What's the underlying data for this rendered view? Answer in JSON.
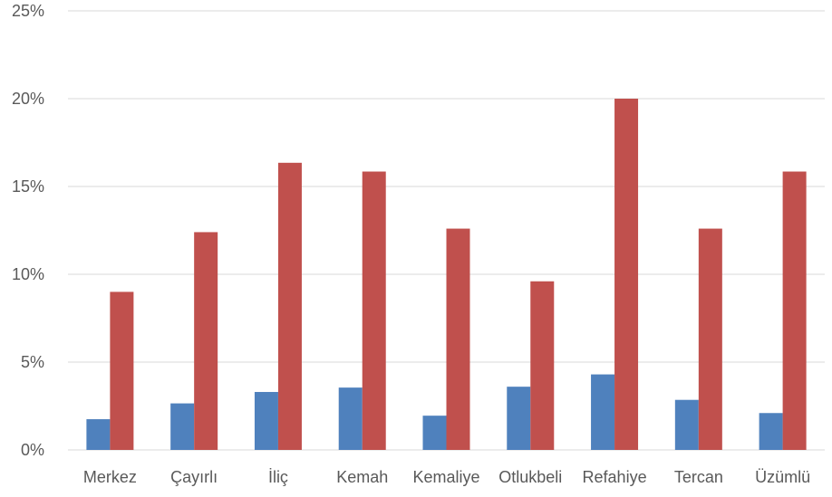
{
  "chart_data": {
    "type": "bar",
    "title": "",
    "xlabel": "",
    "ylabel": "",
    "ylim": [
      0,
      25
    ],
    "yticks": [
      "0%",
      "5%",
      "10%",
      "15%",
      "20%",
      "25%"
    ],
    "ytick_values": [
      0,
      5,
      10,
      15,
      20,
      25
    ],
    "grid": true,
    "legend": "none",
    "categories": [
      "Merkez",
      "Çayırlı",
      "İliç",
      "Kemah",
      "Kemaliye",
      "Otlukbeli",
      "Refahiye",
      "Tercan",
      "Üzümlü"
    ],
    "series": [
      {
        "color": "#4f81bd",
        "values": [
          1.75,
          2.65,
          3.3,
          3.55,
          1.95,
          3.6,
          4.3,
          2.85,
          2.1
        ]
      },
      {
        "color": "#c0504d",
        "values": [
          9.0,
          12.4,
          16.35,
          15.85,
          12.6,
          9.6,
          20.0,
          12.6,
          15.85
        ]
      }
    ]
  }
}
